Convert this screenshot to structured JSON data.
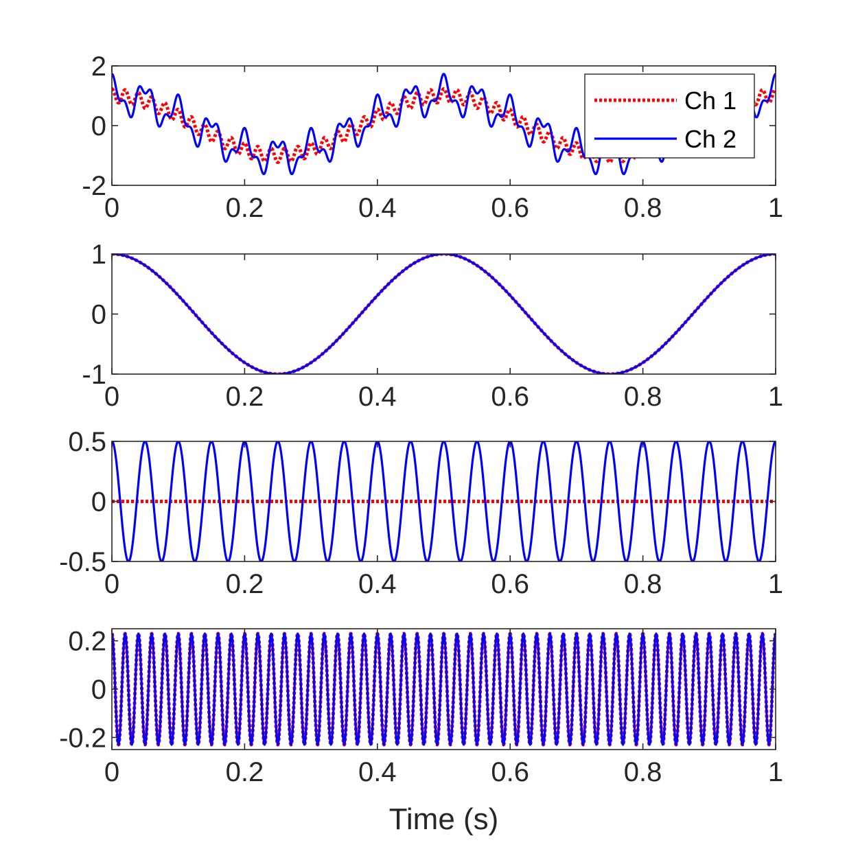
{
  "colors": {
    "ch1": "#ff0000",
    "ch2": "#0000ff",
    "axis": "#262626",
    "background": "#ffffff"
  },
  "chart_data": [
    {
      "type": "line",
      "xlim": [
        0,
        1
      ],
      "ylim": [
        -2,
        2
      ],
      "xticks": [
        0,
        0.2,
        0.4,
        0.6,
        0.8,
        1
      ],
      "xticklabels": [
        "0",
        "0.2",
        "0.4",
        "0.6",
        "0.8",
        "1"
      ],
      "yticks": [
        -2,
        0,
        2
      ],
      "yticklabels": [
        "-2",
        "0",
        "2"
      ],
      "xlabel": "",
      "legend": {
        "placement": "top-right",
        "entries": [
          "Ch 1",
          "Ch 2"
        ]
      },
      "series": [
        {
          "name": "Ch 1",
          "style": "dotted",
          "color": "#ff0000",
          "components": [
            {
              "freq": 2,
              "amp": 1.0
            },
            {
              "freq": 20,
              "amp": 0.0
            },
            {
              "freq": 50,
              "amp": 0.23
            }
          ]
        },
        {
          "name": "Ch 2",
          "style": "solid",
          "color": "#0000ff",
          "components": [
            {
              "freq": 2,
              "amp": 1.0
            },
            {
              "freq": 20,
              "amp": 0.5
            },
            {
              "freq": 50,
              "amp": 0.23
            }
          ]
        }
      ]
    },
    {
      "type": "line",
      "xlim": [
        0,
        1
      ],
      "ylim": [
        -1,
        1
      ],
      "xticks": [
        0,
        0.2,
        0.4,
        0.6,
        0.8,
        1
      ],
      "xticklabels": [
        "0",
        "0.2",
        "0.4",
        "0.6",
        "0.8",
        "1"
      ],
      "yticks": [
        -1,
        0,
        1
      ],
      "yticklabels": [
        "-1",
        "0",
        "1"
      ],
      "xlabel": "",
      "series": [
        {
          "name": "Ch 1",
          "style": "dotted",
          "color": "#ff0000",
          "components": [
            {
              "freq": 2,
              "amp": 1.0
            }
          ]
        },
        {
          "name": "Ch 2",
          "style": "solid",
          "color": "#0000ff",
          "components": [
            {
              "freq": 2,
              "amp": 1.0
            }
          ]
        }
      ]
    },
    {
      "type": "line",
      "xlim": [
        0,
        1
      ],
      "ylim": [
        -0.5,
        0.5
      ],
      "xticks": [
        0,
        0.2,
        0.4,
        0.6,
        0.8,
        1
      ],
      "xticklabels": [
        "0",
        "0.2",
        "0.4",
        "0.6",
        "0.8",
        "1"
      ],
      "yticks": [
        -0.5,
        0,
        0.5
      ],
      "yticklabels": [
        "-0.5",
        "0",
        "0.5"
      ],
      "xlabel": "",
      "series": [
        {
          "name": "Ch 1",
          "style": "dotted",
          "color": "#ff0000",
          "components": [
            {
              "freq": 20,
              "amp": 0.0
            }
          ]
        },
        {
          "name": "Ch 2",
          "style": "solid",
          "color": "#0000ff",
          "components": [
            {
              "freq": 20,
              "amp": 0.5
            }
          ]
        }
      ]
    },
    {
      "type": "line",
      "xlim": [
        0,
        1
      ],
      "ylim": [
        -0.25,
        0.25
      ],
      "xticks": [
        0,
        0.2,
        0.4,
        0.6,
        0.8,
        1
      ],
      "xticklabels": [
        "0",
        "0.2",
        "0.4",
        "0.6",
        "0.8",
        "1"
      ],
      "yticks": [
        -0.2,
        0,
        0.2
      ],
      "yticklabels": [
        "-0.2",
        "0",
        "0.2"
      ],
      "xlabel": "Time (s)",
      "series": [
        {
          "name": "Ch 1",
          "style": "dotted",
          "color": "#ff0000",
          "components": [
            {
              "freq": 50,
              "amp": 0.23
            }
          ]
        },
        {
          "name": "Ch 2",
          "style": "solid",
          "color": "#0000ff",
          "components": [
            {
              "freq": 50,
              "amp": 0.23
            }
          ]
        }
      ]
    }
  ]
}
